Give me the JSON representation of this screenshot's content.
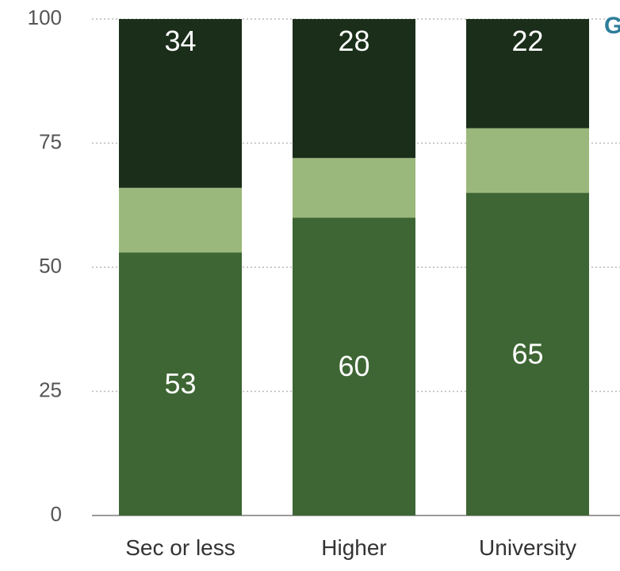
{
  "chart_data": {
    "type": "bar",
    "stacked": true,
    "categories": [
      "Sec or less",
      "Higher",
      "University"
    ],
    "series": [
      {
        "values": [
          53,
          60,
          65
        ],
        "color": "#3e6634",
        "labels": [
          "53",
          "60",
          "65"
        ]
      },
      {
        "values": [
          13,
          12,
          13
        ],
        "color": "#9bb87c",
        "labels": [
          "",
          "",
          ""
        ]
      },
      {
        "values": [
          34,
          28,
          22
        ],
        "color": "#1b2e1a",
        "labels": [
          "34",
          "28",
          "22"
        ]
      }
    ],
    "y_ticks": [
      "0",
      "25",
      "50",
      "75",
      "100"
    ],
    "ylim": [
      0,
      100
    ],
    "grid": true,
    "cut_off_label": "G"
  }
}
